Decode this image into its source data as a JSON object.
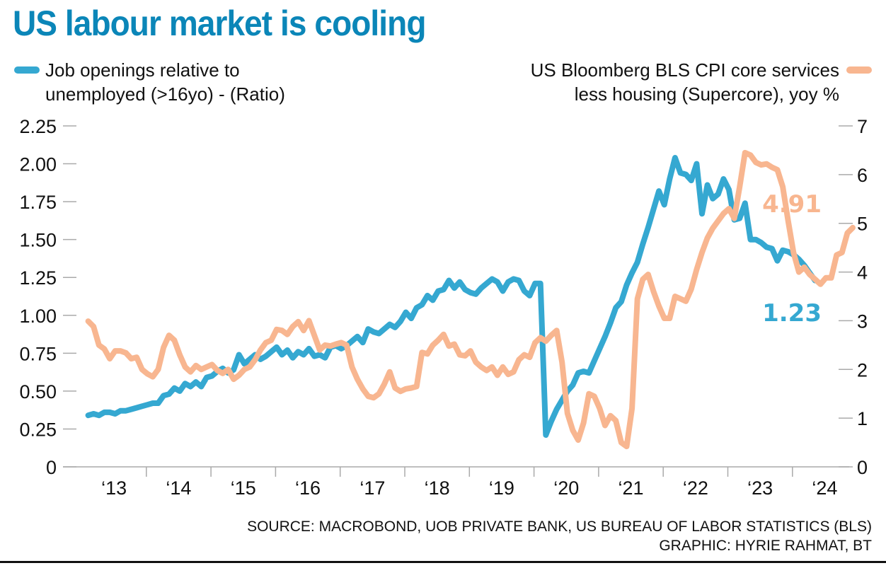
{
  "title": "US labour market is cooling",
  "legend": {
    "left_line1": "Job openings relative to",
    "left_line2": "unemployed (>16yo) - (Ratio)",
    "right_line1": "US Bloomberg BLS CPI core services",
    "right_line2": "less housing (Supercore), yoy %"
  },
  "colors": {
    "title": "#0b86b8",
    "job_openings": "#35a8d1",
    "supercore": "#f8b690",
    "axis": "#aaaaaa"
  },
  "footer": {
    "source": "SOURCE: MACROBOND, UOB PRIVATE BANK, US BUREAU OF LABOR STATISTICS (BLS)",
    "graphic": "GRAPHIC: HYRIE RAHMAT, BT"
  },
  "chart_data": {
    "type": "line",
    "title": "US labour market is cooling",
    "xlabel": "",
    "ylabel_left": "Job openings relative to unemployed (>16yo) - (Ratio)",
    "ylabel_right": "US Bloomberg BLS CPI core services less housing (Supercore), yoy %",
    "x_tick_labels": [
      "‘13",
      "‘14",
      "‘15",
      "‘16",
      "‘17",
      "‘18",
      "‘19",
      "‘20",
      "‘21",
      "‘22",
      "‘23",
      "‘24"
    ],
    "x_years": [
      2013,
      2014,
      2015,
      2016,
      2017,
      2018,
      2019,
      2020,
      2021,
      2022,
      2023,
      2024
    ],
    "x_range": [
      2013.0,
      2025.0
    ],
    "x_start": 2013.1,
    "x_step_months": 1,
    "y_left": {
      "range": [
        0,
        2.25
      ],
      "ticks": [
        0,
        0.25,
        0.5,
        0.75,
        1.0,
        1.25,
        1.5,
        1.75,
        2.0,
        2.25
      ],
      "tick_labels": [
        "0",
        "0.25",
        "0.50",
        "0.75",
        "1.00",
        "1.25",
        "1.50",
        "1.75",
        "2.00",
        "2.25"
      ]
    },
    "y_right": {
      "range": [
        0,
        7
      ],
      "ticks": [
        0,
        1,
        2,
        3,
        4,
        5,
        6,
        7
      ],
      "tick_labels": [
        "0",
        "1",
        "2",
        "3",
        "4",
        "5",
        "6",
        "7"
      ]
    },
    "grid": false,
    "legend_placement": "top",
    "series": [
      {
        "name": "Job openings relative to unemployed (>16yo) - (Ratio)",
        "axis": "left",
        "color": "#35a8d1",
        "end_label": "1.23",
        "values": [
          0.34,
          0.35,
          0.34,
          0.36,
          0.36,
          0.35,
          0.37,
          0.37,
          0.38,
          0.39,
          0.4,
          0.41,
          0.42,
          0.42,
          0.47,
          0.48,
          0.52,
          0.5,
          0.55,
          0.53,
          0.56,
          0.53,
          0.59,
          0.6,
          0.63,
          0.65,
          0.62,
          0.64,
          0.74,
          0.68,
          0.71,
          0.74,
          0.71,
          0.73,
          0.76,
          0.79,
          0.74,
          0.77,
          0.72,
          0.76,
          0.74,
          0.78,
          0.73,
          0.74,
          0.72,
          0.79,
          0.8,
          0.78,
          0.8,
          0.83,
          0.86,
          0.82,
          0.91,
          0.89,
          0.88,
          0.91,
          0.94,
          0.92,
          0.96,
          1.02,
          0.98,
          1.05,
          1.07,
          1.13,
          1.1,
          1.16,
          1.17,
          1.23,
          1.18,
          1.22,
          1.17,
          1.15,
          1.14,
          1.18,
          1.21,
          1.24,
          1.22,
          1.16,
          1.22,
          1.24,
          1.23,
          1.16,
          1.13,
          1.21,
          1.21,
          0.21,
          0.3,
          0.38,
          0.44,
          0.5,
          0.54,
          0.62,
          0.63,
          0.62,
          0.7,
          0.78,
          0.86,
          0.95,
          1.05,
          1.09,
          1.2,
          1.28,
          1.35,
          1.47,
          1.58,
          1.7,
          1.82,
          1.73,
          1.9,
          2.04,
          1.94,
          1.93,
          1.89,
          2.0,
          1.67,
          1.86,
          1.77,
          1.8,
          1.9,
          1.83,
          1.63,
          1.64,
          1.74,
          1.5,
          1.5,
          1.48,
          1.45,
          1.44,
          1.36,
          1.43,
          1.42,
          1.4,
          1.37,
          1.33,
          1.28,
          1.23
        ]
      },
      {
        "name": "US Bloomberg BLS CPI core services less housing (Supercore), yoy %",
        "axis": "right",
        "color": "#f8b690",
        "end_label": "4.91",
        "values": [
          2.99,
          2.88,
          2.5,
          2.42,
          2.22,
          2.38,
          2.38,
          2.34,
          2.22,
          2.25,
          2.0,
          1.91,
          1.85,
          2.0,
          2.45,
          2.7,
          2.6,
          2.3,
          2.05,
          1.95,
          2.08,
          2.0,
          2.05,
          2.1,
          1.98,
          1.92,
          2.0,
          1.8,
          1.88,
          2.0,
          2.05,
          2.2,
          2.4,
          2.55,
          2.6,
          2.82,
          2.8,
          2.72,
          2.88,
          2.98,
          2.8,
          3.0,
          2.7,
          2.4,
          2.5,
          2.48,
          2.52,
          2.55,
          2.5,
          2.05,
          1.8,
          1.6,
          1.45,
          1.42,
          1.5,
          1.7,
          1.95,
          1.62,
          1.55,
          1.6,
          1.62,
          1.65,
          2.35,
          2.32,
          2.5,
          2.6,
          2.72,
          2.48,
          2.52,
          2.3,
          2.28,
          2.38,
          2.15,
          2.05,
          1.98,
          2.05,
          1.88,
          2.05,
          1.9,
          1.95,
          2.2,
          2.3,
          2.25,
          2.55,
          2.65,
          2.58,
          2.7,
          2.8,
          2.15,
          1.1,
          0.75,
          0.55,
          0.9,
          1.5,
          1.45,
          1.2,
          0.85,
          1.05,
          0.95,
          0.5,
          0.42,
          1.2,
          3.45,
          3.85,
          3.95,
          3.6,
          3.3,
          3.05,
          3.05,
          3.5,
          3.45,
          3.4,
          3.65,
          4.05,
          4.4,
          4.7,
          4.9,
          5.05,
          5.2,
          5.3,
          5.1,
          5.75,
          6.45,
          6.4,
          6.25,
          6.2,
          6.22,
          6.15,
          6.1,
          5.75,
          5.05,
          4.4,
          4.0,
          4.1,
          3.95,
          3.85,
          3.75,
          3.88,
          3.88,
          4.35,
          4.4,
          4.8,
          4.91
        ]
      }
    ]
  }
}
